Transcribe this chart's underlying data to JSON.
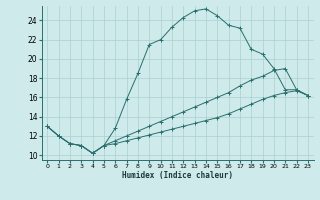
{
  "xlabel": "Humidex (Indice chaleur)",
  "bg_color": "#ceeaea",
  "grid_color": "#aacfcf",
  "line_color": "#2a6e6e",
  "xlim": [
    -0.5,
    23.5
  ],
  "ylim": [
    9.5,
    25.5
  ],
  "xticks": [
    0,
    1,
    2,
    3,
    4,
    5,
    6,
    7,
    8,
    9,
    10,
    11,
    12,
    13,
    14,
    15,
    16,
    17,
    18,
    19,
    20,
    21,
    22,
    23
  ],
  "yticks": [
    10,
    12,
    14,
    16,
    18,
    20,
    22,
    24
  ],
  "curve_max": {
    "x": [
      0,
      1,
      2,
      3,
      4,
      5,
      6,
      7,
      8,
      9,
      10,
      11,
      12,
      13,
      14,
      15,
      16,
      17,
      18,
      19,
      20,
      21,
      22,
      23
    ],
    "y": [
      13.0,
      12.0,
      11.2,
      11.0,
      10.2,
      11.0,
      12.8,
      15.8,
      18.5,
      21.5,
      22.0,
      23.3,
      24.3,
      25.0,
      25.2,
      24.5,
      23.5,
      23.2,
      21.0,
      20.5,
      19.0,
      16.8,
      16.8,
      16.2
    ]
  },
  "curve_mid": {
    "x": [
      0,
      1,
      2,
      3,
      4,
      5,
      6,
      7,
      8,
      9,
      10,
      11,
      12,
      13,
      14,
      15,
      16,
      17,
      18,
      19,
      20,
      21,
      22,
      23
    ],
    "y": [
      13.0,
      12.0,
      11.2,
      11.0,
      10.2,
      11.0,
      11.5,
      12.0,
      12.5,
      13.0,
      13.5,
      14.0,
      14.5,
      15.0,
      15.5,
      16.0,
      16.5,
      17.2,
      17.8,
      18.2,
      18.8,
      19.0,
      16.8,
      16.2
    ]
  },
  "curve_min": {
    "x": [
      0,
      1,
      2,
      3,
      4,
      5,
      6,
      7,
      8,
      9,
      10,
      11,
      12,
      13,
      14,
      15,
      16,
      17,
      18,
      19,
      20,
      21,
      22,
      23
    ],
    "y": [
      13.0,
      12.0,
      11.2,
      11.0,
      10.2,
      11.0,
      11.2,
      11.5,
      11.8,
      12.1,
      12.4,
      12.7,
      13.0,
      13.3,
      13.6,
      13.9,
      14.3,
      14.8,
      15.3,
      15.8,
      16.2,
      16.5,
      16.7,
      16.2
    ]
  }
}
